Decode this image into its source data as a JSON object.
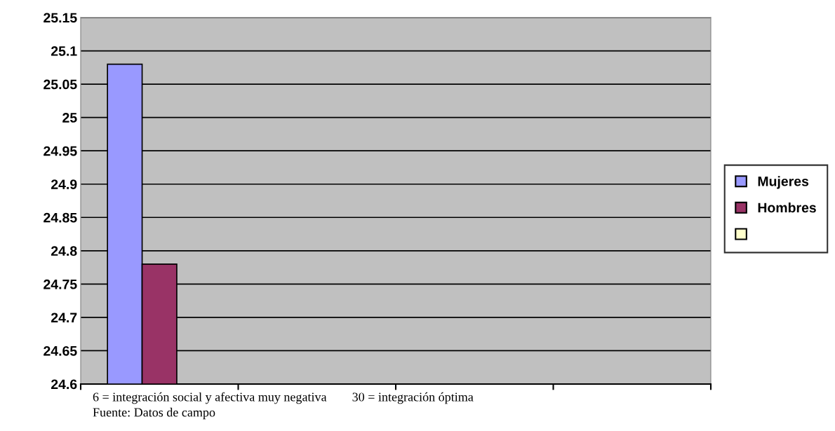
{
  "chart_data": {
    "type": "bar",
    "categories": [
      null,
      null,
      null,
      null
    ],
    "series": [
      {
        "name": "Mujeres",
        "color": "#9999ff",
        "values": [
          25.08,
          null,
          null,
          null
        ]
      },
      {
        "name": "Hombres",
        "color": "#993366",
        "values": [
          24.78,
          null,
          null,
          null
        ]
      },
      {
        "color": "#ffffcc",
        "values": [
          null,
          null,
          null,
          null
        ]
      }
    ],
    "ylim": [
      24.6,
      25.15
    ],
    "yticks": [
      24.6,
      24.65,
      24.7,
      24.75,
      24.8,
      24.85,
      24.9,
      24.95,
      25,
      25.05,
      25.1,
      25.15
    ],
    "grid": "y",
    "legend": "right",
    "annotations": [
      "6 = integración social y afectiva muy negativa        30 = integración óptima",
      "Fuente: Datos de campo"
    ]
  }
}
